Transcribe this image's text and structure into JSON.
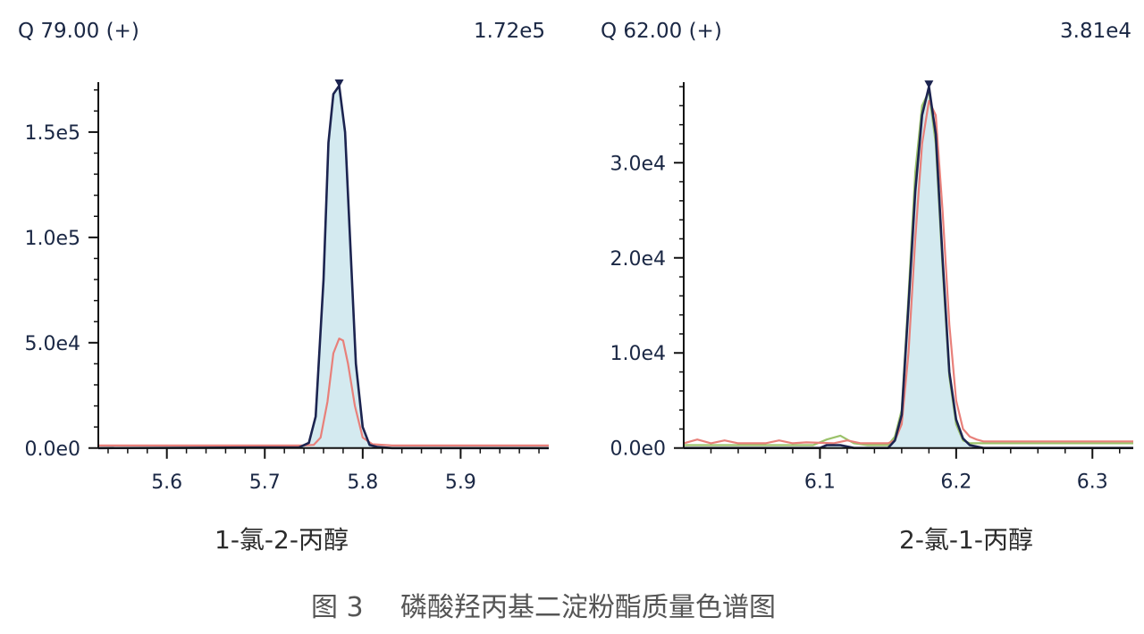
{
  "figure": {
    "caption_prefix": "图 3",
    "caption_text": "磷酸羟丙基二淀粉酯质量色谱图"
  },
  "colors": {
    "quant": "#1c2450",
    "fill": "#d4eaf0",
    "qualifier1": "#e8807a",
    "qualifier2": "#9bc26a",
    "axis": "#111111"
  },
  "chart_data": [
    {
      "type": "line",
      "header_left": "Q 79.00 (+)",
      "header_right": "1.72e5",
      "compound": "1-氯-2-丙醇",
      "xlim": [
        5.53,
        5.99
      ],
      "ylim": [
        -1800,
        172000
      ],
      "x_ticks": [
        5.6,
        5.7,
        5.8,
        5.9
      ],
      "x_tick_labels": [
        "5.6",
        "5.7",
        "5.8",
        "5.9"
      ],
      "y_ticks": [
        0,
        50000,
        100000,
        150000
      ],
      "y_tick_labels": [
        "0.0e0",
        "5.0e4",
        "1.0e5",
        "1.5e5"
      ],
      "apex_x": 5.776,
      "series": [
        {
          "role": "quant",
          "x": [
            5.53,
            5.735,
            5.745,
            5.752,
            5.76,
            5.765,
            5.77,
            5.776,
            5.782,
            5.787,
            5.793,
            5.8,
            5.807,
            5.815,
            5.83,
            5.99
          ],
          "y": [
            0,
            300,
            2500,
            15000,
            80000,
            145000,
            168000,
            172000,
            150000,
            100000,
            40000,
            10000,
            1500,
            500,
            0,
            0
          ]
        },
        {
          "role": "qualifier1",
          "x": [
            5.53,
            5.74,
            5.75,
            5.757,
            5.764,
            5.77,
            5.776,
            5.78,
            5.785,
            5.792,
            5.8,
            5.81,
            5.83,
            5.99
          ],
          "y": [
            1200,
            1200,
            1500,
            5000,
            22000,
            45000,
            52000,
            51000,
            40000,
            20000,
            5000,
            1800,
            1200,
            1200
          ]
        }
      ]
    },
    {
      "type": "line",
      "header_left": "Q 62.00 (+)",
      "header_right": "3.81e4",
      "compound": "2-氯-1-丙醇",
      "xlim": [
        6.0,
        6.33
      ],
      "ylim": [
        -400,
        38100
      ],
      "x_ticks": [
        6.1,
        6.2,
        6.3
      ],
      "x_tick_labels": [
        "6.1",
        "6.2",
        "6.3"
      ],
      "y_ticks": [
        0,
        10000,
        20000,
        30000
      ],
      "y_tick_labels": [
        "0.0e0",
        "1.0e4",
        "2.0e4",
        "3.0e4"
      ],
      "apex_x": 6.18,
      "series": [
        {
          "role": "quant",
          "x": [
            6.0,
            6.1,
            6.105,
            6.115,
            6.125,
            6.15,
            6.155,
            6.16,
            6.165,
            6.17,
            6.175,
            6.18,
            6.185,
            6.19,
            6.195,
            6.2,
            6.205,
            6.21,
            6.22,
            6.33
          ],
          "y": [
            0,
            0,
            300,
            300,
            0,
            0,
            800,
            3500,
            15000,
            27000,
            35000,
            38000,
            33000,
            20000,
            8000,
            3000,
            1000,
            300,
            0,
            0
          ]
        },
        {
          "role": "qualifier2",
          "x": [
            6.0,
            6.095,
            6.105,
            6.115,
            6.125,
            6.135,
            6.15,
            6.155,
            6.16,
            6.165,
            6.17,
            6.175,
            6.18,
            6.185,
            6.19,
            6.195,
            6.2,
            6.205,
            6.21,
            6.22,
            6.33
          ],
          "y": [
            300,
            300,
            900,
            1300,
            500,
            300,
            300,
            1200,
            4000,
            16000,
            29000,
            36000,
            37500,
            32000,
            19000,
            7500,
            2500,
            800,
            500,
            500,
            500
          ]
        },
        {
          "role": "qualifier1",
          "x": [
            6.0,
            6.01,
            6.02,
            6.03,
            6.04,
            6.06,
            6.07,
            6.08,
            6.09,
            6.11,
            6.12,
            6.13,
            6.15,
            6.155,
            6.16,
            6.165,
            6.17,
            6.175,
            6.18,
            6.185,
            6.19,
            6.195,
            6.2,
            6.205,
            6.21,
            6.215,
            6.22,
            6.33
          ],
          "y": [
            500,
            900,
            500,
            800,
            500,
            500,
            800,
            500,
            600,
            500,
            800,
            500,
            500,
            800,
            2500,
            10000,
            22000,
            32000,
            36500,
            35000,
            25000,
            13000,
            5000,
            2000,
            1200,
            900,
            700,
            700
          ]
        }
      ]
    }
  ]
}
